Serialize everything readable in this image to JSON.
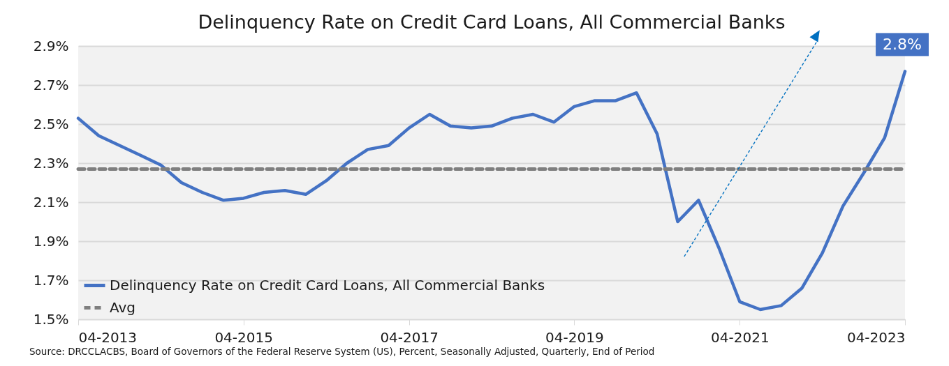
{
  "chart_data": {
    "type": "line",
    "title": "Delinquency Rate on Credit Card Loans, All Commercial Banks",
    "x": [
      "2013-04",
      "2013-07",
      "2013-10",
      "2014-01",
      "2014-04",
      "2014-07",
      "2014-10",
      "2015-01",
      "2015-04",
      "2015-07",
      "2015-10",
      "2016-01",
      "2016-04",
      "2016-07",
      "2016-10",
      "2017-01",
      "2017-04",
      "2017-07",
      "2017-10",
      "2018-01",
      "2018-04",
      "2018-07",
      "2018-10",
      "2019-01",
      "2019-04",
      "2019-07",
      "2019-10",
      "2020-01",
      "2020-04",
      "2020-07",
      "2020-10",
      "2021-01",
      "2021-04",
      "2021-07",
      "2021-10",
      "2022-01",
      "2022-04",
      "2022-07",
      "2022-10",
      "2023-01",
      "2023-04"
    ],
    "series": [
      {
        "name": "Delinquency Rate on Credit Card Loans, All Commercial Banks",
        "color": "#4472c4",
        "values": [
          2.53,
          2.44,
          2.39,
          2.34,
          2.29,
          2.2,
          2.15,
          2.11,
          2.12,
          2.15,
          2.16,
          2.14,
          2.21,
          2.3,
          2.37,
          2.39,
          2.48,
          2.55,
          2.49,
          2.48,
          2.49,
          2.53,
          2.55,
          2.51,
          2.59,
          2.62,
          2.62,
          2.66,
          2.45,
          2.0,
          2.11,
          1.86,
          1.59,
          1.55,
          1.57,
          1.66,
          1.84,
          2.08,
          2.25,
          2.43,
          2.77
        ]
      }
    ],
    "ref_lines": [
      {
        "axis": "y",
        "value": 2.27,
        "label": "Avg",
        "color": "#7f7f7f",
        "line_style": "dashed"
      }
    ],
    "annotations": [
      {
        "text": "2.8%",
        "x": "2023-04",
        "y": 2.77
      },
      "Source: DRCCLACBS, Board of Governors of the Federal Reserve System (US), Percent, Seasonally Adjusted, Quarterly, End of Period"
    ],
    "xlim": [
      "2013-04",
      "2023-04"
    ],
    "xticks": [
      {
        "value": "2013-04",
        "label": "04-2013"
      },
      {
        "value": "2015-04",
        "label": "04-2015"
      },
      {
        "value": "2017-04",
        "label": "04-2017"
      },
      {
        "value": "2019-04",
        "label": "04-2019"
      },
      {
        "value": "2021-04",
        "label": "04-2021"
      },
      {
        "value": "2023-04",
        "label": "04-2023"
      }
    ],
    "ylim": [
      1.5,
      2.9
    ],
    "yticks": [
      {
        "value": 1.5,
        "label": "1.5%"
      },
      {
        "value": 1.7,
        "label": "1.7%"
      },
      {
        "value": 1.9,
        "label": "1.9%"
      },
      {
        "value": 2.1,
        "label": "2.1%"
      },
      {
        "value": 2.3,
        "label": "2.3%"
      },
      {
        "value": 2.5,
        "label": "2.5%"
      },
      {
        "value": 2.7,
        "label": "2.7%"
      },
      {
        "value": 2.9,
        "label": "2.9%"
      }
    ],
    "grid": "y",
    "legend": "bottom left",
    "line_style": "solid",
    "marker": "none"
  }
}
